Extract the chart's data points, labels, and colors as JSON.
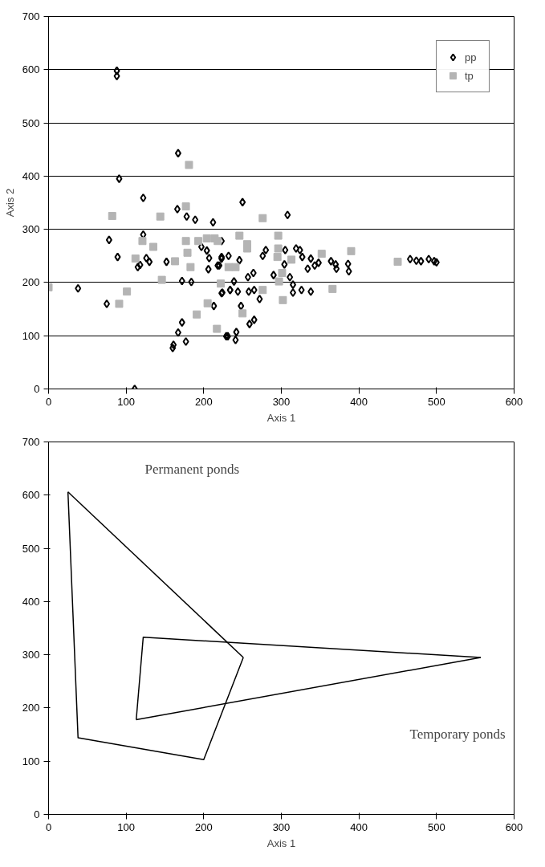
{
  "chart_data": [
    {
      "type": "scatter",
      "xlabel": "Axis 1",
      "ylabel": "Axis 2",
      "xlim": [
        0,
        600
      ],
      "ylim": [
        0,
        700
      ],
      "xticks": [
        0,
        100,
        200,
        300,
        400,
        500,
        600
      ],
      "yticks": [
        0,
        100,
        200,
        300,
        400,
        500,
        600,
        700
      ],
      "grid": "y",
      "legend": "top right",
      "series": [
        {
          "name": "pp",
          "color": "#000000",
          "marker": "diamond",
          "x": [
            88,
            88,
            167,
            91,
            122,
            166,
            178,
            189,
            212,
            78,
            122,
            89,
            126,
            130,
            115,
            118,
            152,
            172,
            184,
            38,
            75,
            172,
            167,
            177,
            160,
            161,
            111,
            204,
            207,
            206,
            218,
            223,
            223,
            232,
            231,
            213,
            224,
            234,
            197,
            250,
            308,
            246,
            223,
            220,
            276,
            280,
            305,
            304,
            290,
            319,
            324,
            327,
            338,
            334,
            343,
            348,
            364,
            370,
            371,
            386,
            387,
            239,
            257,
            264,
            234,
            223,
            244,
            258,
            265,
            272,
            248,
            265,
            259,
            229,
            241,
            242,
            311,
            315,
            315,
            326,
            338,
            466,
            474,
            480,
            490,
            497,
            500
          ],
          "values": [
            598,
            588,
            443,
            395,
            359,
            338,
            324,
            318,
            313,
            280,
            290,
            248,
            246,
            239,
            229,
            233,
            239,
            203,
            201,
            189,
            160,
            125,
            106,
            89,
            77,
            83,
            0,
            260,
            246,
            225,
            232,
            248,
            278,
            250,
            99,
            156,
            181,
            186,
            267,
            351,
            327,
            242,
            245,
            232,
            250,
            261,
            261,
            234,
            214,
            264,
            261,
            248,
            245,
            226,
            232,
            237,
            240,
            234,
            226,
            235,
            221,
            202,
            210,
            218,
            186,
            180,
            183,
            183,
            186,
            169,
            156,
            130,
            122,
            99,
            92,
            107,
            210,
            196,
            181,
            186,
            183,
            244,
            241,
            240,
            244,
            240,
            238
          ]
        },
        {
          "name": "tp",
          "color": "#b4b4b4",
          "marker": "square",
          "x": [
            181,
            82,
            144,
            177,
            121,
            135,
            112,
            163,
            146,
            101,
            91,
            0,
            177,
            179,
            183,
            193,
            204,
            214,
            205,
            191,
            217,
            222,
            276,
            246,
            256,
            256,
            296,
            296,
            295,
            313,
            352,
            390,
            241,
            232,
            301,
            297,
            276,
            366,
            302,
            250,
            218,
            450
          ],
          "values": [
            421,
            325,
            324,
            343,
            278,
            267,
            245,
            240,
            205,
            183,
            160,
            191,
            278,
            256,
            229,
            278,
            283,
            283,
            161,
            140,
            113,
            198,
            321,
            288,
            264,
            272,
            288,
            264,
            248,
            243,
            254,
            259,
            229,
            229,
            218,
            202,
            186,
            188,
            167,
            142,
            278,
            239
          ]
        }
      ]
    },
    {
      "type": "line",
      "xlabel": "Axis 1",
      "xlim": [
        0,
        600
      ],
      "ylim": [
        0,
        700
      ],
      "xticks": [
        0,
        100,
        200,
        300,
        400,
        500,
        600
      ],
      "yticks": [
        0,
        100,
        200,
        300,
        400,
        500,
        600,
        700
      ],
      "annotations": [
        "Permanent ponds",
        "Temporary ponds"
      ],
      "series": [
        {
          "color": "#000000",
          "x": [
            25,
            251
          ],
          "values": [
            606,
            295
          ]
        },
        {
          "color": "#000000",
          "x": [
            25,
            38,
            200,
            251
          ],
          "values": [
            606,
            144,
            103,
            295
          ]
        },
        {
          "color": "#000000",
          "x": [
            113,
            122,
            557
          ],
          "values": [
            178,
            333,
            295
          ]
        },
        {
          "color": "#000000",
          "x": [
            113,
            557
          ],
          "values": [
            178,
            295
          ]
        }
      ]
    }
  ]
}
